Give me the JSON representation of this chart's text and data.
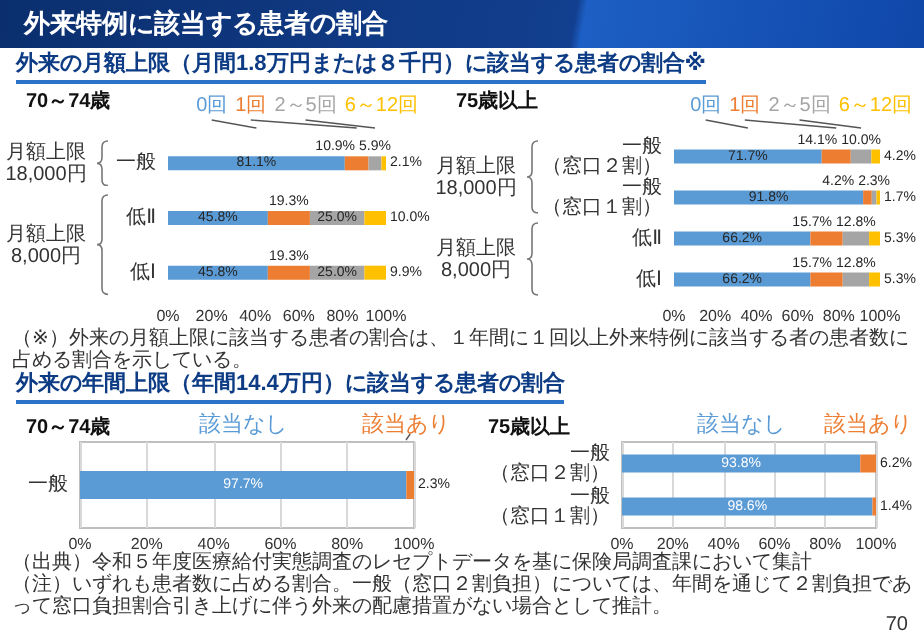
{
  "chart_data": [
    {
      "type": "bar",
      "orientation": "horizontal",
      "stacked": true,
      "title": "70～74歳",
      "categories": [
        "一般",
        "低Ⅱ",
        "低Ⅰ"
      ],
      "series": [
        {
          "name": "0回",
          "color": "#5b9bd5",
          "values": [
            81.1,
            45.8,
            45.8
          ],
          "value_labels": [
            "81.1%",
            "45.8%",
            "45.8%"
          ]
        },
        {
          "name": "1回",
          "color": "#ed7d31",
          "values": [
            10.9,
            19.3,
            19.3
          ],
          "value_labels": [
            "10.9%",
            "19.3%",
            "19.3%"
          ]
        },
        {
          "name": "2～5回",
          "color": "#a5a5a5",
          "values": [
            5.9,
            25.0,
            25.0
          ],
          "value_labels": [
            "5.9%",
            "25.0%",
            "25.0%"
          ]
        },
        {
          "name": "6～12回",
          "color": "#ffc000",
          "values": [
            2.1,
            10.0,
            9.9
          ],
          "value_labels": [
            "2.1%",
            "10.0%",
            "9.9%"
          ]
        }
      ],
      "xlim": [
        0,
        100
      ],
      "xticks": [
        {
          "value": 0,
          "label": "0%"
        },
        {
          "value": 20,
          "label": "20%"
        },
        {
          "value": 40,
          "label": "40%"
        },
        {
          "value": 60,
          "label": "60%"
        },
        {
          "value": 80,
          "label": "80%"
        },
        {
          "value": 100,
          "label": "100%"
        }
      ],
      "annotations": [
        "外来特例に該当する患者の割合",
        "外来の月額上限（月間1.8万円または８千円）に該当する患者の割合※",
        "月額上限\n18,000円",
        "月額上限\n8,000円",
        "（※）外来の月額上限に該当する患者の割合は、１年間に１回以上外来特例に該当する者の患者数に占める割合を示している。"
      ]
    },
    {
      "type": "bar",
      "orientation": "horizontal",
      "stacked": true,
      "title": "75歳以上",
      "categories": [
        "一般（窓口２割）",
        "一般（窓口１割）",
        "低Ⅱ",
        "低Ⅰ"
      ],
      "series": [
        {
          "name": "0回",
          "color": "#5b9bd5",
          "values": [
            71.7,
            91.8,
            66.2,
            66.2
          ],
          "value_labels": [
            "71.7%",
            "91.8%",
            "66.2%",
            "66.2%"
          ]
        },
        {
          "name": "1回",
          "color": "#ed7d31",
          "values": [
            14.1,
            4.2,
            15.7,
            15.7
          ],
          "value_labels": [
            "14.1%",
            "4.2%",
            "15.7%",
            "15.7%"
          ]
        },
        {
          "name": "2～5回",
          "color": "#a5a5a5",
          "values": [
            10.0,
            2.3,
            12.8,
            12.8
          ],
          "value_labels": [
            "10.0%",
            "2.3%",
            "12.8%",
            "12.8%"
          ]
        },
        {
          "name": "6～12回",
          "color": "#ffc000",
          "values": [
            4.2,
            1.7,
            5.3,
            5.3
          ],
          "value_labels": [
            "4.2%",
            "1.7%",
            "5.3%",
            "5.3%"
          ]
        }
      ],
      "xlim": [
        0,
        100
      ],
      "xticks": [
        {
          "value": 0,
          "label": "0%"
        },
        {
          "value": 20,
          "label": "20%"
        },
        {
          "value": 40,
          "label": "40%"
        },
        {
          "value": 60,
          "label": "60%"
        },
        {
          "value": 80,
          "label": "80%"
        },
        {
          "value": 100,
          "label": "100%"
        }
      ],
      "annotations": [
        "月額上限\n18,000円",
        "月額上限\n8,000円"
      ]
    },
    {
      "type": "bar",
      "orientation": "horizontal",
      "stacked": true,
      "title": "70～74歳",
      "categories": [
        "一般"
      ],
      "series": [
        {
          "name": "該当なし",
          "color": "#5b9bd5",
          "values": [
            97.7
          ],
          "value_labels": [
            "97.7%"
          ]
        },
        {
          "name": "該当あり",
          "color": "#ed7d31",
          "values": [
            2.3
          ],
          "value_labels": [
            "2.3%"
          ]
        }
      ],
      "xlim": [
        0,
        100
      ],
      "xticks": [
        {
          "value": 0,
          "label": "0%"
        },
        {
          "value": 20,
          "label": "20%"
        },
        {
          "value": 40,
          "label": "40%"
        },
        {
          "value": 60,
          "label": "60%"
        },
        {
          "value": 80,
          "label": "80%"
        },
        {
          "value": 100,
          "label": "100%"
        }
      ],
      "grid": "x",
      "annotations": [
        "外来の年間上限（年間14.4万円）に該当する患者の割合",
        "（出典）令和５年度医療給付実態調査のレセプトデータを基に保険局調査課において集計",
        "（注）いずれも患者数に占める割合。一般（窓口２割負担）については、年間を通じて２割負担であって窓口負担割合引き上げに伴う外来の配慮措置がない場合として推計。"
      ]
    },
    {
      "type": "bar",
      "orientation": "horizontal",
      "stacked": true,
      "title": "75歳以上",
      "categories": [
        "一般（窓口２割）",
        "一般（窓口１割）"
      ],
      "series": [
        {
          "name": "該当なし",
          "color": "#5b9bd5",
          "values": [
            93.8,
            98.6
          ],
          "value_labels": [
            "93.8%",
            "98.6%"
          ]
        },
        {
          "name": "該当あり",
          "color": "#ed7d31",
          "values": [
            6.2,
            1.4
          ],
          "value_labels": [
            "6.2%",
            "1.4%"
          ]
        }
      ],
      "xlim": [
        0,
        100
      ],
      "xticks": [
        {
          "value": 0,
          "label": "0%"
        },
        {
          "value": 20,
          "label": "20%"
        },
        {
          "value": 40,
          "label": "40%"
        },
        {
          "value": 60,
          "label": "60%"
        },
        {
          "value": 80,
          "label": "80%"
        },
        {
          "value": 100,
          "label": "100%"
        }
      ],
      "grid": "x",
      "annotations": [
        "70"
      ]
    }
  ]
}
